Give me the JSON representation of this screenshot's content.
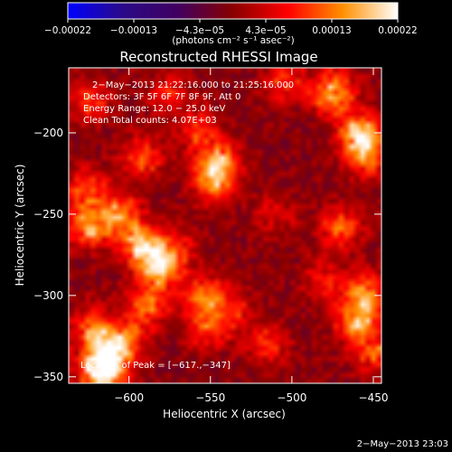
{
  "chart_data": {
    "type": "heatmap",
    "title": "Reconstructed RHESSI Image",
    "xlabel": "Heliocentric X (arcsec)",
    "ylabel": "Heliocentric Y (arcsec)",
    "xlim": [
      -637,
      -445
    ],
    "ylim": [
      -354,
      -160
    ],
    "xticks": [
      -600,
      -550,
      -500,
      -450
    ],
    "xtick_labels": [
      "−600",
      "−550",
      "−500",
      "−450"
    ],
    "yticks": [
      -350,
      -300,
      -250,
      -200
    ],
    "ytick_labels": [
      "−350",
      "−300",
      "−250",
      "−200"
    ],
    "colorbar": {
      "range": [
        -0.00022,
        0.00022
      ],
      "tick_labels": [
        "−0.00022",
        "−0.00013",
        "−4.3e−05",
        "4.3e−05",
        "0.00013",
        "0.00022"
      ],
      "unit_label": "(photons cm⁻² s⁻¹ asec⁻²)",
      "colors": [
        "#0000ff",
        "#2b0a88",
        "#400060",
        "#880000",
        "#ff0000",
        "#ff9000",
        "#ffffff"
      ]
    },
    "annotations": [
      "2−May−2013 21:22:16.000  to  21:25:16.000",
      "Detectors:  3F 5F 6F 7F 8F 9F, Att 0",
      "Energy Range: 12.0 − 25.0 keV",
      "Clean     Total counts: 4.07E+03"
    ],
    "peak_label": "Location of Peak = [−617.,−347]",
    "peak": [
      -617,
      -347
    ],
    "sources": [
      {
        "x": -617,
        "y": -347,
        "intensity": 0.00022
      },
      {
        "x": -612,
        "y": -335,
        "intensity": 0.00018
      },
      {
        "x": -623,
        "y": -320,
        "intensity": 0.00012
      },
      {
        "x": -600,
        "y": -325,
        "intensity": 0.0001
      },
      {
        "x": -592,
        "y": -270,
        "intensity": 0.00019
      },
      {
        "x": -580,
        "y": -283,
        "intensity": 0.00016
      },
      {
        "x": -624,
        "y": -258,
        "intensity": 0.00015
      },
      {
        "x": -605,
        "y": -250,
        "intensity": 0.00013
      },
      {
        "x": -625,
        "y": -235,
        "intensity": 0.00012
      },
      {
        "x": -592,
        "y": -215,
        "intensity": 0.00011
      },
      {
        "x": -588,
        "y": -305,
        "intensity": 0.00012
      },
      {
        "x": -625,
        "y": -180,
        "intensity": 0.0001
      },
      {
        "x": -545,
        "y": -218,
        "intensity": 0.00016
      },
      {
        "x": -548,
        "y": -232,
        "intensity": 0.00012
      },
      {
        "x": -557,
        "y": -198,
        "intensity": 0.0001
      },
      {
        "x": -553,
        "y": -300,
        "intensity": 0.00013
      },
      {
        "x": -552,
        "y": -320,
        "intensity": 0.00011
      },
      {
        "x": -535,
        "y": -310,
        "intensity": 7e-05
      },
      {
        "x": -515,
        "y": -330,
        "intensity": 9e-05
      },
      {
        "x": -505,
        "y": -168,
        "intensity": 0.0001
      },
      {
        "x": -475,
        "y": -175,
        "intensity": 0.00017
      },
      {
        "x": -458,
        "y": -200,
        "intensity": 0.00019
      },
      {
        "x": -454,
        "y": -215,
        "intensity": 0.00013
      },
      {
        "x": -470,
        "y": -258,
        "intensity": 0.00012
      },
      {
        "x": -455,
        "y": -298,
        "intensity": 0.00014
      },
      {
        "x": -460,
        "y": -315,
        "intensity": 0.00016
      },
      {
        "x": -450,
        "y": -335,
        "intensity": 0.00011
      },
      {
        "x": -480,
        "y": -290,
        "intensity": 8e-05
      },
      {
        "x": -570,
        "y": -270,
        "intensity": 7e-05
      },
      {
        "x": -510,
        "y": -250,
        "intensity": 6e-05
      },
      {
        "x": -575,
        "y": -175,
        "intensity": 8e-05
      }
    ]
  },
  "footer": {
    "timestamp": "2−May−2013 23:03"
  }
}
